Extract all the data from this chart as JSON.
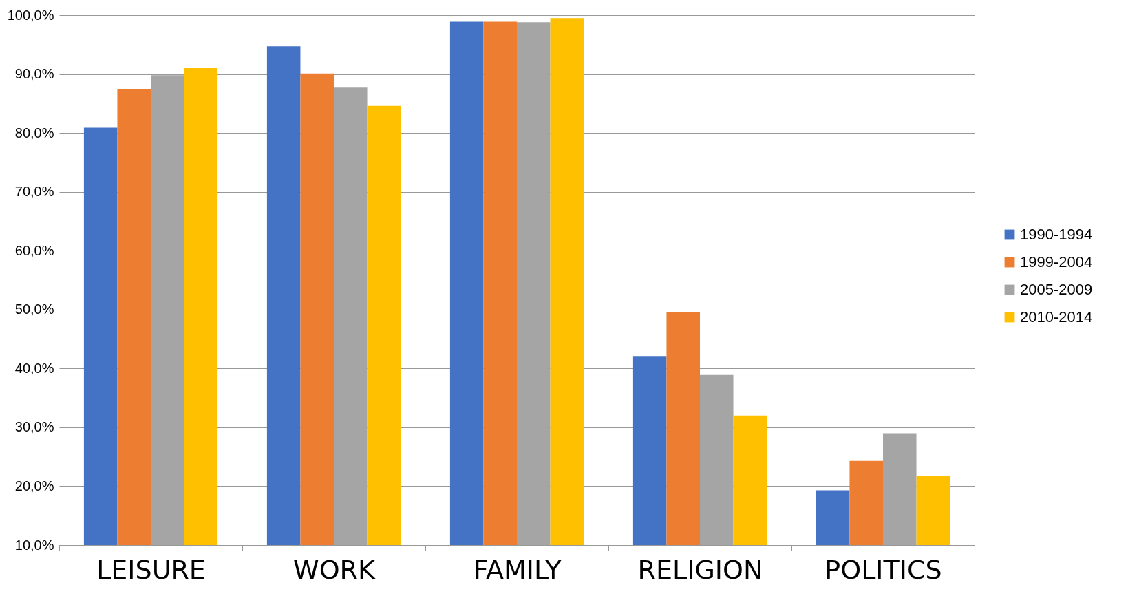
{
  "chart_data": {
    "type": "bar",
    "categories": [
      "LEISURE",
      "WORK",
      "FAMILY",
      "RELIGION",
      "POLITICS"
    ],
    "series": [
      {
        "name": "1990-1994",
        "color": "#4472c4",
        "values": [
          80.9,
          94.7,
          98.9,
          42.0,
          19.3
        ]
      },
      {
        "name": "1999-2004",
        "color": "#ed7d31",
        "values": [
          87.4,
          90.1,
          98.9,
          49.6,
          24.3
        ]
      },
      {
        "name": "2005-2009",
        "color": "#a5a5a5",
        "values": [
          89.8,
          87.7,
          98.8,
          38.9,
          29.0
        ]
      },
      {
        "name": "2010-2014",
        "color": "#ffc000",
        "values": [
          91.0,
          84.6,
          99.5,
          32.0,
          21.7
        ]
      }
    ],
    "ylim": [
      10,
      100
    ],
    "yticks": [
      {
        "value": 10,
        "label": "10,0%"
      },
      {
        "value": 20,
        "label": "20,0%"
      },
      {
        "value": 30,
        "label": "30,0%"
      },
      {
        "value": 40,
        "label": "40,0%"
      },
      {
        "value": 50,
        "label": "50,0%"
      },
      {
        "value": 60,
        "label": "60,0%"
      },
      {
        "value": 70,
        "label": "70,0%"
      },
      {
        "value": 80,
        "label": "80,0%"
      },
      {
        "value": 90,
        "label": "90,0%"
      },
      {
        "value": 100,
        "label": "100,0%"
      }
    ],
    "grid": "y",
    "legend": "right"
  }
}
